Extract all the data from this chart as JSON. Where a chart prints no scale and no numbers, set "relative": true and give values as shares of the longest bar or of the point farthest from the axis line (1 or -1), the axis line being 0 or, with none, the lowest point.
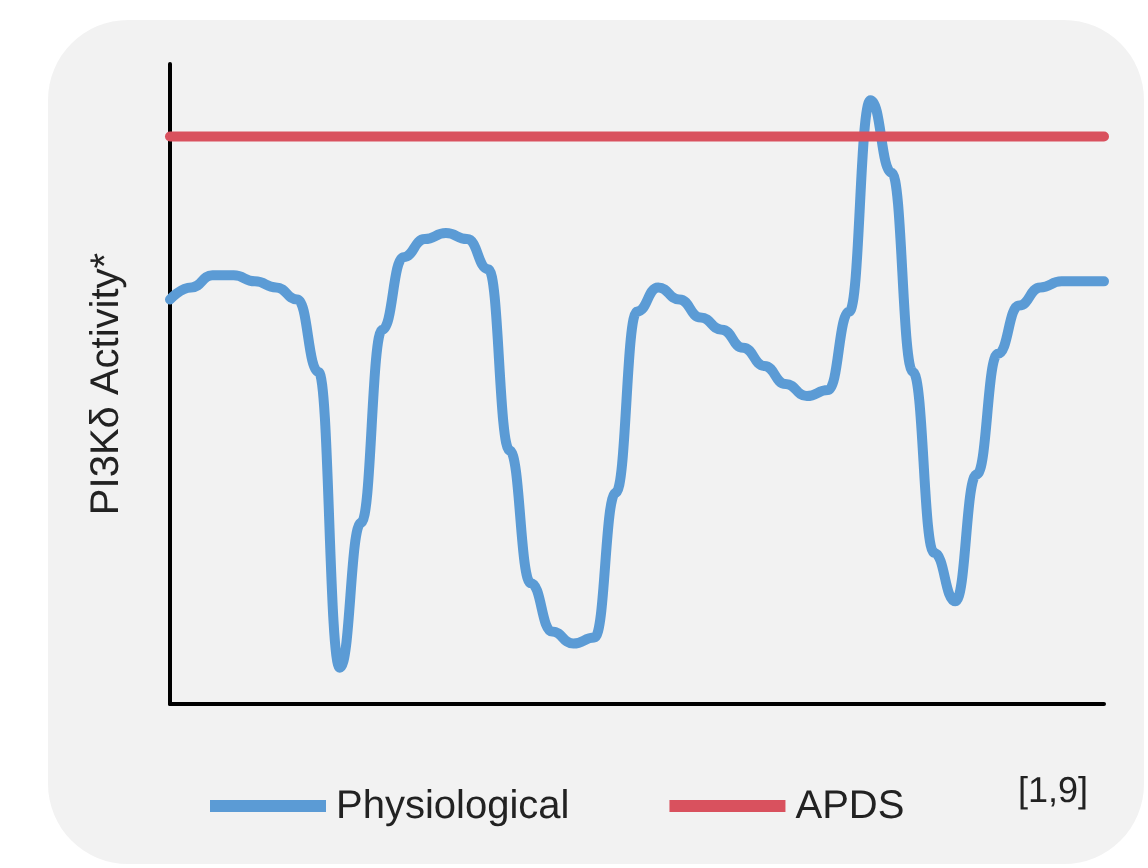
{
  "chart_data": {
    "type": "line",
    "relative": true,
    "ylabel": "PI3Kδ Activity*",
    "annotations": [
      "[1,9]"
    ],
    "categories": [
      null,
      null,
      null,
      null,
      null,
      null,
      null,
      null,
      null,
      null,
      null,
      null,
      null,
      null,
      null,
      null,
      null,
      null,
      null,
      null,
      null,
      null,
      null,
      null,
      null,
      null,
      null,
      null,
      null,
      null,
      null,
      null,
      null,
      null,
      null,
      null,
      null,
      null,
      null,
      null,
      null,
      null,
      null,
      null,
      null
    ],
    "series": [
      {
        "name": "Physiological",
        "color": "#5b9bd5",
        "values": [
          0.67,
          0.69,
          0.71,
          0.71,
          0.7,
          0.69,
          0.67,
          0.55,
          0.06,
          0.3,
          0.62,
          0.74,
          0.77,
          0.78,
          0.77,
          0.72,
          0.42,
          0.2,
          0.12,
          0.1,
          0.11,
          0.35,
          0.65,
          0.69,
          0.67,
          0.64,
          0.62,
          0.59,
          0.56,
          0.53,
          0.51,
          0.52,
          0.65,
          1.0,
          0.88,
          0.55,
          0.25,
          0.17,
          0.38,
          0.58,
          0.66,
          0.69,
          0.7,
          0.7,
          0.7
        ]
      },
      {
        "name": "APDS",
        "color": "#d9515e",
        "values": [
          0.94,
          0.94,
          0.94,
          0.94,
          0.94,
          0.94,
          0.94,
          0.94,
          0.94,
          0.94,
          0.94,
          0.94,
          0.94,
          0.94,
          0.94,
          0.94,
          0.94,
          0.94,
          0.94,
          0.94,
          0.94,
          0.94,
          0.94,
          0.94,
          0.94,
          0.94,
          0.94,
          0.94,
          0.94,
          0.94,
          0.94,
          0.94,
          0.94,
          0.94,
          0.94,
          0.94,
          0.94,
          0.94,
          0.94,
          0.94,
          0.94,
          0.94,
          0.94,
          0.94,
          0.94
        ]
      }
    ],
    "legend": "bottom",
    "marker": "none",
    "line_style": "solid",
    "grid": false
  }
}
